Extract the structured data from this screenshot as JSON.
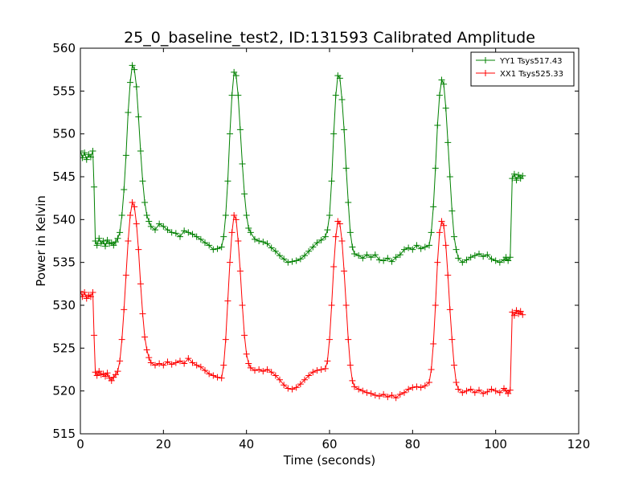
{
  "chart_data": {
    "type": "line",
    "title": "25_0_baseline_test2, ID:131593 Calibrated Amplitude",
    "xlabel": "Time (seconds)",
    "ylabel": "Power in Kelvin",
    "xlim": [
      0,
      120
    ],
    "ylim": [
      515,
      560
    ],
    "x_ticks": [
      0,
      20,
      40,
      60,
      80,
      100,
      120
    ],
    "y_ticks": [
      515,
      520,
      525,
      530,
      535,
      540,
      545,
      550,
      555,
      560
    ],
    "grid": false,
    "legend_position": "top-right",
    "marker": "+",
    "series": [
      {
        "name": "YY1 Tsys517.43",
        "color": "#008000",
        "points": [
          [
            0.0,
            548.0
          ],
          [
            0.5,
            547.2
          ],
          [
            1.0,
            547.8
          ],
          [
            1.5,
            547.0
          ],
          [
            2.0,
            547.6
          ],
          [
            2.5,
            547.3
          ],
          [
            3.0,
            548.0
          ],
          [
            3.3,
            543.8
          ],
          [
            3.6,
            537.5
          ],
          [
            4.0,
            537.0
          ],
          [
            4.5,
            537.8
          ],
          [
            5.0,
            537.2
          ],
          [
            5.5,
            537.5
          ],
          [
            6.0,
            536.9
          ],
          [
            6.5,
            537.6
          ],
          [
            7.0,
            537.2
          ],
          [
            7.5,
            537.3
          ],
          [
            8.0,
            537.0
          ],
          [
            8.5,
            537.4
          ],
          [
            9.0,
            537.8
          ],
          [
            9.5,
            538.5
          ],
          [
            10.0,
            540.5
          ],
          [
            10.5,
            543.5
          ],
          [
            11.0,
            547.5
          ],
          [
            11.5,
            552.5
          ],
          [
            12.0,
            556.0
          ],
          [
            12.5,
            558.0
          ],
          [
            13.0,
            557.5
          ],
          [
            13.5,
            555.5
          ],
          [
            14.0,
            552.0
          ],
          [
            14.5,
            548.0
          ],
          [
            15.0,
            544.5
          ],
          [
            15.5,
            542.0
          ],
          [
            16.0,
            540.5
          ],
          [
            16.5,
            539.8
          ],
          [
            17.0,
            539.2
          ],
          [
            18.0,
            538.8
          ],
          [
            19.0,
            539.5
          ],
          [
            20.0,
            539.2
          ],
          [
            21.0,
            538.8
          ],
          [
            22.0,
            538.5
          ],
          [
            23.0,
            538.4
          ],
          [
            24.0,
            538.0
          ],
          [
            25.0,
            538.7
          ],
          [
            26.0,
            538.5
          ],
          [
            27.0,
            538.3
          ],
          [
            28.0,
            538.0
          ],
          [
            29.0,
            537.7
          ],
          [
            30.0,
            537.3
          ],
          [
            31.0,
            537.0
          ],
          [
            32.0,
            536.5
          ],
          [
            33.0,
            536.6
          ],
          [
            34.0,
            536.8
          ],
          [
            34.5,
            538.0
          ],
          [
            35.0,
            540.5
          ],
          [
            35.5,
            544.5
          ],
          [
            36.0,
            550.0
          ],
          [
            36.5,
            554.5
          ],
          [
            37.0,
            557.2
          ],
          [
            37.5,
            556.8
          ],
          [
            38.0,
            554.5
          ],
          [
            38.5,
            550.5
          ],
          [
            39.0,
            546.5
          ],
          [
            39.5,
            543.0
          ],
          [
            40.0,
            540.5
          ],
          [
            40.5,
            539.0
          ],
          [
            41.0,
            538.5
          ],
          [
            42.0,
            537.7
          ],
          [
            43.0,
            537.5
          ],
          [
            44.0,
            537.4
          ],
          [
            45.0,
            537.2
          ],
          [
            46.0,
            536.7
          ],
          [
            47.0,
            536.3
          ],
          [
            48.0,
            535.8
          ],
          [
            49.0,
            535.4
          ],
          [
            50.0,
            535.0
          ],
          [
            51.0,
            535.1
          ],
          [
            52.0,
            535.2
          ],
          [
            53.0,
            535.4
          ],
          [
            54.0,
            535.8
          ],
          [
            55.0,
            536.3
          ],
          [
            56.0,
            536.8
          ],
          [
            57.0,
            537.3
          ],
          [
            58.0,
            537.6
          ],
          [
            59.0,
            538.0
          ],
          [
            59.5,
            538.8
          ],
          [
            60.0,
            540.5
          ],
          [
            60.5,
            544.5
          ],
          [
            61.0,
            550.0
          ],
          [
            61.5,
            554.5
          ],
          [
            62.0,
            556.8
          ],
          [
            62.5,
            556.5
          ],
          [
            63.0,
            554.0
          ],
          [
            63.5,
            550.5
          ],
          [
            64.0,
            546.0
          ],
          [
            64.5,
            542.0
          ],
          [
            65.0,
            538.5
          ],
          [
            65.5,
            536.8
          ],
          [
            66.0,
            536.0
          ],
          [
            67.0,
            535.8
          ],
          [
            68.0,
            535.5
          ],
          [
            69.0,
            535.9
          ],
          [
            70.0,
            535.6
          ],
          [
            71.0,
            535.9
          ],
          [
            72.0,
            535.3
          ],
          [
            73.0,
            535.2
          ],
          [
            74.0,
            535.5
          ],
          [
            75.0,
            535.1
          ],
          [
            76.0,
            535.6
          ],
          [
            77.0,
            535.9
          ],
          [
            78.0,
            536.5
          ],
          [
            79.0,
            536.7
          ],
          [
            80.0,
            536.5
          ],
          [
            81.0,
            537.0
          ],
          [
            82.0,
            536.6
          ],
          [
            83.0,
            536.8
          ],
          [
            84.0,
            537.0
          ],
          [
            84.5,
            538.5
          ],
          [
            85.0,
            541.5
          ],
          [
            85.5,
            546.0
          ],
          [
            86.0,
            551.0
          ],
          [
            86.5,
            554.5
          ],
          [
            87.0,
            556.3
          ],
          [
            87.5,
            555.8
          ],
          [
            88.0,
            553.0
          ],
          [
            88.5,
            549.0
          ],
          [
            89.0,
            545.0
          ],
          [
            89.5,
            541.0
          ],
          [
            90.0,
            538.0
          ],
          [
            90.5,
            536.5
          ],
          [
            91.0,
            535.5
          ],
          [
            92.0,
            535.0
          ],
          [
            93.0,
            535.3
          ],
          [
            94.0,
            535.6
          ],
          [
            95.0,
            535.8
          ],
          [
            96.0,
            536.0
          ],
          [
            97.0,
            535.7
          ],
          [
            98.0,
            535.9
          ],
          [
            99.0,
            535.4
          ],
          [
            100.0,
            535.2
          ],
          [
            101.0,
            535.0
          ],
          [
            102.0,
            535.3
          ],
          [
            102.5,
            535.6
          ],
          [
            103.0,
            535.2
          ],
          [
            103.5,
            535.6
          ],
          [
            104.0,
            544.8
          ],
          [
            104.5,
            545.3
          ],
          [
            105.0,
            544.6
          ],
          [
            105.5,
            545.2
          ],
          [
            106.0,
            544.8
          ],
          [
            106.5,
            545.1
          ]
        ]
      },
      {
        "name": "XX1 Tsys525.33",
        "color": "#ff0000",
        "points": [
          [
            0.0,
            531.6
          ],
          [
            0.5,
            531.0
          ],
          [
            1.0,
            531.5
          ],
          [
            1.5,
            530.8
          ],
          [
            2.0,
            531.2
          ],
          [
            2.5,
            531.0
          ],
          [
            3.0,
            531.5
          ],
          [
            3.3,
            526.5
          ],
          [
            3.6,
            522.2
          ],
          [
            4.0,
            521.8
          ],
          [
            4.5,
            522.3
          ],
          [
            5.0,
            521.9
          ],
          [
            5.5,
            522.0
          ],
          [
            6.0,
            521.7
          ],
          [
            6.5,
            522.1
          ],
          [
            7.0,
            521.5
          ],
          [
            7.5,
            521.2
          ],
          [
            8.0,
            521.6
          ],
          [
            8.5,
            521.9
          ],
          [
            9.0,
            522.3
          ],
          [
            9.5,
            523.5
          ],
          [
            10.0,
            526.0
          ],
          [
            10.5,
            529.5
          ],
          [
            11.0,
            533.5
          ],
          [
            11.5,
            537.5
          ],
          [
            12.0,
            540.5
          ],
          [
            12.5,
            542.0
          ],
          [
            13.0,
            541.5
          ],
          [
            13.5,
            539.5
          ],
          [
            14.0,
            536.5
          ],
          [
            14.5,
            532.5
          ],
          [
            15.0,
            529.0
          ],
          [
            15.5,
            526.3
          ],
          [
            16.0,
            524.8
          ],
          [
            16.5,
            523.9
          ],
          [
            17.0,
            523.3
          ],
          [
            18.0,
            523.0
          ],
          [
            19.0,
            523.2
          ],
          [
            20.0,
            523.0
          ],
          [
            21.0,
            523.4
          ],
          [
            22.0,
            523.1
          ],
          [
            23.0,
            523.3
          ],
          [
            24.0,
            523.5
          ],
          [
            25.0,
            523.2
          ],
          [
            26.0,
            523.8
          ],
          [
            27.0,
            523.3
          ],
          [
            28.0,
            523.0
          ],
          [
            29.0,
            522.8
          ],
          [
            30.0,
            522.4
          ],
          [
            31.0,
            522.0
          ],
          [
            32.0,
            521.8
          ],
          [
            33.0,
            521.6
          ],
          [
            34.0,
            521.5
          ],
          [
            34.5,
            523.0
          ],
          [
            35.0,
            526.0
          ],
          [
            35.5,
            530.5
          ],
          [
            36.0,
            535.0
          ],
          [
            36.5,
            538.5
          ],
          [
            37.0,
            540.5
          ],
          [
            37.5,
            540.0
          ],
          [
            38.0,
            537.5
          ],
          [
            38.5,
            534.0
          ],
          [
            39.0,
            530.0
          ],
          [
            39.5,
            526.5
          ],
          [
            40.0,
            524.3
          ],
          [
            40.5,
            523.2
          ],
          [
            41.0,
            522.7
          ],
          [
            42.0,
            522.4
          ],
          [
            43.0,
            522.5
          ],
          [
            44.0,
            522.3
          ],
          [
            45.0,
            522.5
          ],
          [
            46.0,
            522.2
          ],
          [
            47.0,
            521.8
          ],
          [
            48.0,
            521.3
          ],
          [
            49.0,
            520.7
          ],
          [
            50.0,
            520.3
          ],
          [
            51.0,
            520.2
          ],
          [
            52.0,
            520.4
          ],
          [
            53.0,
            520.8
          ],
          [
            54.0,
            521.3
          ],
          [
            55.0,
            521.8
          ],
          [
            56.0,
            522.2
          ],
          [
            57.0,
            522.4
          ],
          [
            58.0,
            522.5
          ],
          [
            59.0,
            522.6
          ],
          [
            59.5,
            523.5
          ],
          [
            60.0,
            526.0
          ],
          [
            60.5,
            530.0
          ],
          [
            61.0,
            534.5
          ],
          [
            61.5,
            538.0
          ],
          [
            62.0,
            539.8
          ],
          [
            62.5,
            539.5
          ],
          [
            63.0,
            537.5
          ],
          [
            63.5,
            534.0
          ],
          [
            64.0,
            530.0
          ],
          [
            64.5,
            526.0
          ],
          [
            65.0,
            523.0
          ],
          [
            65.5,
            521.2
          ],
          [
            66.0,
            520.5
          ],
          [
            67.0,
            520.2
          ],
          [
            68.0,
            520.0
          ],
          [
            69.0,
            519.8
          ],
          [
            70.0,
            519.7
          ],
          [
            71.0,
            519.5
          ],
          [
            72.0,
            519.4
          ],
          [
            73.0,
            519.6
          ],
          [
            74.0,
            519.3
          ],
          [
            75.0,
            519.5
          ],
          [
            76.0,
            519.2
          ],
          [
            77.0,
            519.6
          ],
          [
            78.0,
            519.8
          ],
          [
            79.0,
            520.2
          ],
          [
            80.0,
            520.4
          ],
          [
            81.0,
            520.5
          ],
          [
            82.0,
            520.4
          ],
          [
            83.0,
            520.6
          ],
          [
            84.0,
            521.0
          ],
          [
            84.5,
            522.5
          ],
          [
            85.0,
            525.5
          ],
          [
            85.5,
            530.0
          ],
          [
            86.0,
            535.0
          ],
          [
            86.5,
            538.5
          ],
          [
            87.0,
            539.8
          ],
          [
            87.5,
            539.3
          ],
          [
            88.0,
            537.0
          ],
          [
            88.5,
            533.5
          ],
          [
            89.0,
            529.5
          ],
          [
            89.5,
            526.0
          ],
          [
            90.0,
            523.0
          ],
          [
            90.5,
            521.0
          ],
          [
            91.0,
            520.2
          ],
          [
            92.0,
            519.8
          ],
          [
            93.0,
            520.0
          ],
          [
            94.0,
            520.2
          ],
          [
            95.0,
            519.8
          ],
          [
            96.0,
            520.1
          ],
          [
            97.0,
            519.7
          ],
          [
            98.0,
            519.9
          ],
          [
            99.0,
            520.2
          ],
          [
            100.0,
            520.0
          ],
          [
            101.0,
            519.8
          ],
          [
            102.0,
            520.3
          ],
          [
            102.5,
            520.0
          ],
          [
            103.0,
            519.7
          ],
          [
            103.5,
            520.1
          ],
          [
            104.0,
            529.2
          ],
          [
            104.5,
            528.8
          ],
          [
            105.0,
            529.4
          ],
          [
            105.5,
            529.0
          ],
          [
            106.0,
            529.3
          ],
          [
            106.5,
            528.9
          ]
        ]
      }
    ]
  }
}
